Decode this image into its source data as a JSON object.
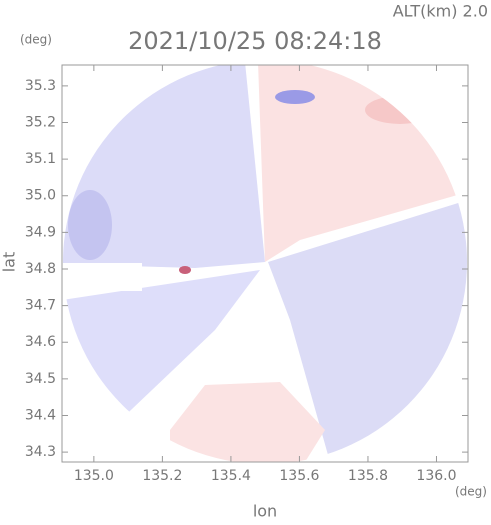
{
  "chart_data": {
    "type": "radar-field",
    "title": "2021/10/25 08:24:18",
    "annotation": "ALT(km) 2.0",
    "xlabel": "lon",
    "ylabel": "lat",
    "xunit": "(deg)",
    "yunit": "(deg)",
    "xlim": [
      134.907,
      136.092
    ],
    "ylim": [
      34.273,
      35.357
    ],
    "xticks": [
      {
        "value": 135,
        "label": "135.0"
      },
      135.2,
      135.4,
      135.6,
      135.8,
      {
        "value": 136,
        "label": "136.0"
      }
    ],
    "yticks": [
      34.3,
      34.4,
      34.5,
      34.6,
      34.7,
      34.8,
      34.9,
      {
        "value": 35,
        "label": "35.0"
      },
      35.1,
      35.2,
      35.3
    ]
  }
}
